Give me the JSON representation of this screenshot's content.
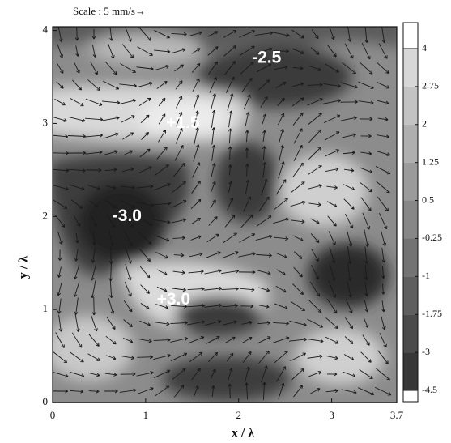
{
  "chart_data": {
    "type": "contour",
    "scale_label": "Scale : 5 mm/s→",
    "xlabel": "x / λ",
    "ylabel": "y / λ",
    "xlim": [
      0,
      3.7
    ],
    "ylim": [
      0,
      4.04
    ],
    "xticks": [
      0,
      1,
      2,
      3,
      3.7
    ],
    "yticks": [
      0,
      1,
      2,
      3,
      4
    ],
    "colorbar": {
      "levels": [
        4,
        2.75,
        2,
        1.25,
        0.5,
        -0.25,
        -1,
        -1.75,
        -3,
        -4.5
      ]
    },
    "annotations": [
      {
        "text": "-2.5",
        "x": 2.3,
        "y": 3.7
      },
      {
        "text": "+1.5",
        "x": 1.4,
        "y": 3.0
      },
      {
        "text": "-3.0",
        "x": 0.8,
        "y": 2.0
      },
      {
        "text": "+3.0",
        "x": 1.3,
        "y": 1.1
      }
    ]
  }
}
